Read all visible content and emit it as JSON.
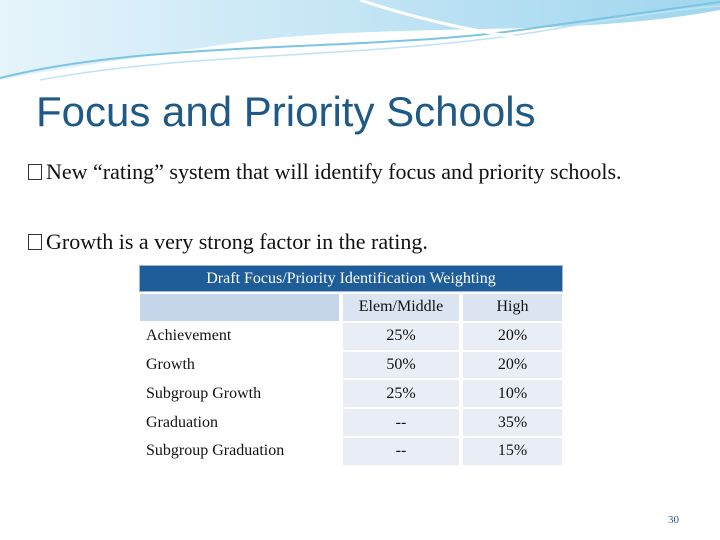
{
  "title": "Focus and Priority Schools",
  "bullets": [
    "New “rating” system that will identify focus and priority schools.",
    "Growth is a very strong factor in the rating."
  ],
  "table": {
    "title": "Draft Focus/Priority Identification Weighting",
    "columns": [
      "Elem/Middle",
      "High"
    ],
    "rows": [
      [
        "Achievement",
        "25%",
        "20%"
      ],
      [
        "Growth",
        "50%",
        "20%"
      ],
      [
        "Subgroup Growth",
        "25%",
        "10%"
      ],
      [
        "Graduation",
        "--",
        "35%"
      ],
      [
        "Subgroup Graduation",
        "--",
        "15%"
      ]
    ]
  },
  "page_number": "30"
}
